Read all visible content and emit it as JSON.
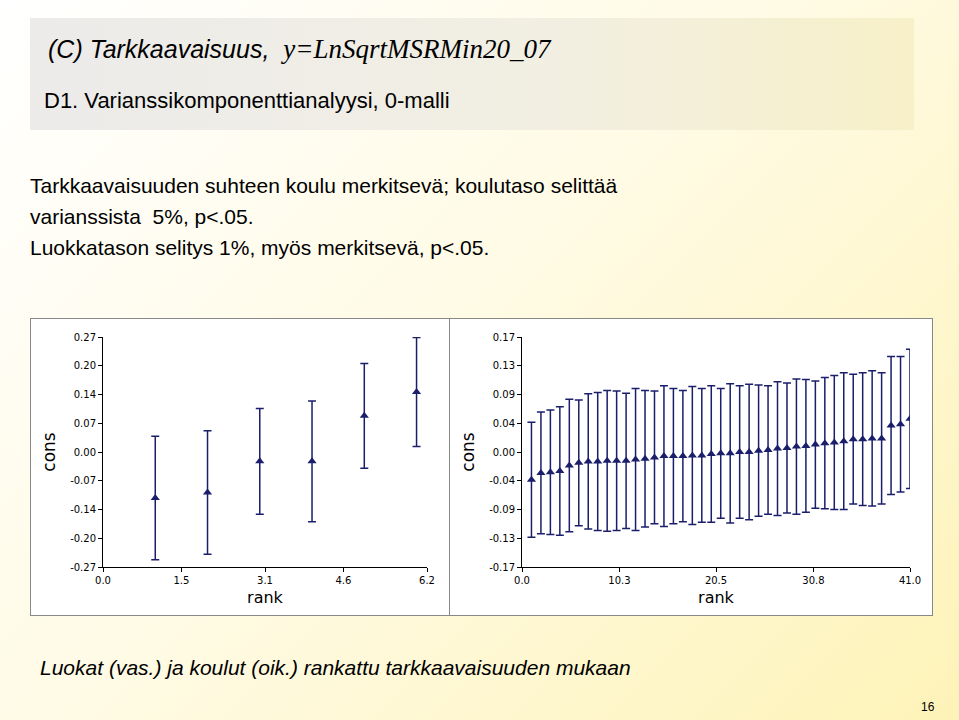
{
  "slide": {
    "header_label": "(C) Tarkkaavaisuus,  ",
    "header_formula": "y=LnSqrtMSRMin20_07",
    "header_sub": "D1. Varianssikomponenttianalyysi, 0-malli",
    "body": [
      "Tarkkaavaisuuden suhteen koulu merkitsevä; koulutaso selittää",
      "varianssista  5%, p<.05.",
      "Luokkatason selitys 1%, myös merkitsevä, p<.05."
    ],
    "caption": "Luokat (vas.) ja koulut (oik.) rankattu tarkkaavaisuuden mukaan",
    "page": "16"
  },
  "chart_data": [
    {
      "type": "scatter",
      "xlabel": "rank",
      "ylabel": "cons",
      "color": "#1b1f6b",
      "marker": "triangle-up",
      "grid": false,
      "x": [
        1,
        2,
        3,
        4,
        5,
        6
      ],
      "values": [
        -0.108,
        -0.095,
        -0.022,
        -0.022,
        0.085,
        0.141
      ],
      "error": [
        0.145,
        0.145,
        0.124,
        0.142,
        0.123,
        0.128
      ],
      "xlim": [
        0,
        6.2
      ],
      "ylim": [
        -0.27,
        0.27
      ],
      "xticks": [
        {
          "value": 0,
          "label": "0.0"
        },
        1.5,
        3.1,
        4.6,
        6.2
      ],
      "yticks": [
        -0.27,
        {
          "value": -0.2025,
          "label": "-0.20"
        },
        {
          "value": -0.135,
          "label": "-0.14"
        },
        {
          "value": -0.0675,
          "label": "-0.07"
        },
        {
          "value": 0,
          "label": "0.00"
        },
        {
          "value": 0.0675,
          "label": "0.07"
        },
        {
          "value": 0.135,
          "label": "0.14"
        },
        {
          "value": 0.2025,
          "label": "0.20"
        },
        0.27
      ]
    },
    {
      "type": "scatter",
      "xlabel": "rank",
      "ylabel": "cons",
      "color": "#1b1f6b",
      "marker": "triangle-up",
      "grid": false,
      "x": [
        1,
        2,
        3,
        4,
        5,
        6,
        7,
        8,
        9,
        10,
        11,
        12,
        13,
        14,
        15,
        16,
        17,
        18,
        19,
        20,
        21,
        22,
        23,
        24,
        25,
        26,
        27,
        28,
        29,
        30,
        31,
        32,
        33,
        34,
        35,
        36,
        37,
        38,
        39,
        40,
        41
      ],
      "values": [
        -0.041,
        -0.031,
        -0.03,
        -0.028,
        -0.02,
        -0.016,
        -0.014,
        -0.014,
        -0.013,
        -0.013,
        -0.013,
        -0.011,
        -0.01,
        -0.008,
        -0.006,
        -0.006,
        -0.006,
        -0.005,
        -0.005,
        -0.003,
        -0.002,
        -0.002,
        0.0,
        0.0,
        0.002,
        0.003,
        0.005,
        0.006,
        0.008,
        0.009,
        0.011,
        0.013,
        0.014,
        0.016,
        0.019,
        0.019,
        0.02,
        0.02,
        0.039,
        0.041,
        0.049
      ],
      "error": [
        0.085,
        0.09,
        0.092,
        0.095,
        0.098,
        0.093,
        0.1,
        0.102,
        0.104,
        0.103,
        0.1,
        0.105,
        0.101,
        0.098,
        0.104,
        0.1,
        0.097,
        0.102,
        0.099,
        0.101,
        0.096,
        0.103,
        0.098,
        0.1,
        0.097,
        0.095,
        0.099,
        0.096,
        0.1,
        0.098,
        0.094,
        0.097,
        0.099,
        0.101,
        0.096,
        0.098,
        0.1,
        0.097,
        0.102,
        0.1,
        0.103
      ],
      "xlim": [
        0,
        41
      ],
      "ylim": [
        -0.17,
        0.17
      ],
      "xticks": [
        {
          "value": 0,
          "label": "0.0"
        },
        10.3,
        20.5,
        30.8,
        {
          "value": 41,
          "label": "41.0"
        }
      ],
      "yticks": [
        -0.17,
        {
          "value": -0.1275,
          "label": "-0.13"
        },
        {
          "value": -0.085,
          "label": "-0.09"
        },
        {
          "value": -0.0425,
          "label": "-0.04"
        },
        {
          "value": 0,
          "label": "0.00"
        },
        {
          "value": 0.0425,
          "label": "0.04"
        },
        {
          "value": 0.085,
          "label": "0.09"
        },
        {
          "value": 0.1275,
          "label": "0.13"
        },
        0.17
      ]
    }
  ]
}
